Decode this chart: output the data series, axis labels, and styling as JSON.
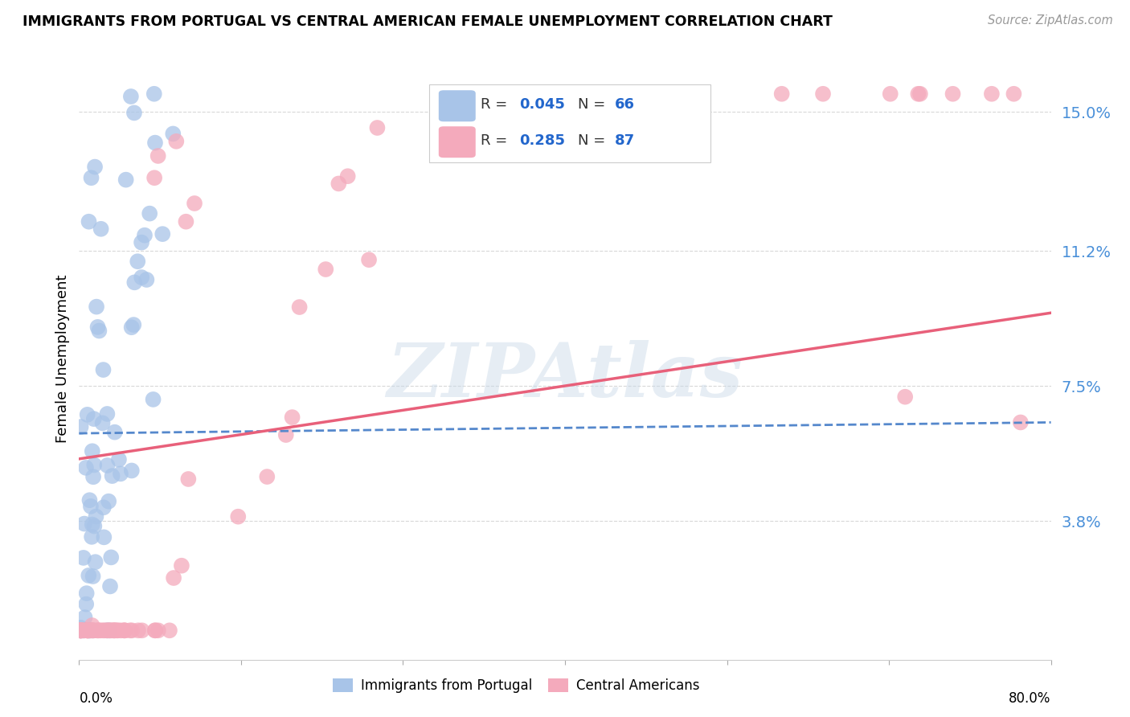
{
  "title": "IMMIGRANTS FROM PORTUGAL VS CENTRAL AMERICAN FEMALE UNEMPLOYMENT CORRELATION CHART",
  "source": "Source: ZipAtlas.com",
  "ylabel": "Female Unemployment",
  "yticks": [
    0.038,
    0.075,
    0.112,
    0.15
  ],
  "ytick_labels": [
    "3.8%",
    "7.5%",
    "11.2%",
    "15.0%"
  ],
  "xlim": [
    0.0,
    0.8
  ],
  "ylim": [
    0.0,
    0.165
  ],
  "blue_color": "#a8c4e8",
  "pink_color": "#f4aabc",
  "blue_line_color": "#5588cc",
  "pink_line_color": "#e8607a",
  "watermark": "ZIPAtlas",
  "background_color": "#ffffff",
  "grid_color": "#d8d8d8",
  "blue_line": {
    "x0": 0.0,
    "x1": 0.8,
    "y0": 0.062,
    "y1": 0.065
  },
  "pink_line": {
    "x0": 0.0,
    "x1": 0.8,
    "y0": 0.055,
    "y1": 0.095
  }
}
